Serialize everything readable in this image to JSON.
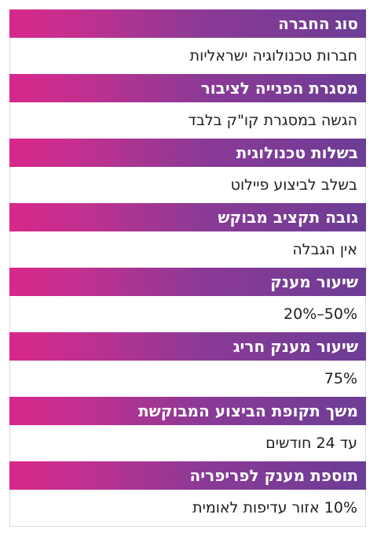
{
  "rows": [
    {
      "label": "סוג החברה",
      "value": "חברות טכנולוגיה ישראליות"
    },
    {
      "label": "מסגרת הפנייה לציבור",
      "value": "הגשה במסגרת קו\"ק בלבד"
    },
    {
      "label": "בשלות טכנולוגית",
      "value": "בשלב לביצוע פיילוט"
    },
    {
      "label": "גובה תקציב מבוקש",
      "value": "אין הגבלה"
    },
    {
      "label": "שיעור מענק",
      "value": "50%–20%"
    },
    {
      "label": "שיעור מענק חריג",
      "value": "75%"
    },
    {
      "label": "משך תקופת הביצוע המבוקשת",
      "value": "עד 24 חודשים"
    },
    {
      "label": "תוספת מענק לפריפריה",
      "value": "10% אזור עדיפות לאומית"
    }
  ]
}
